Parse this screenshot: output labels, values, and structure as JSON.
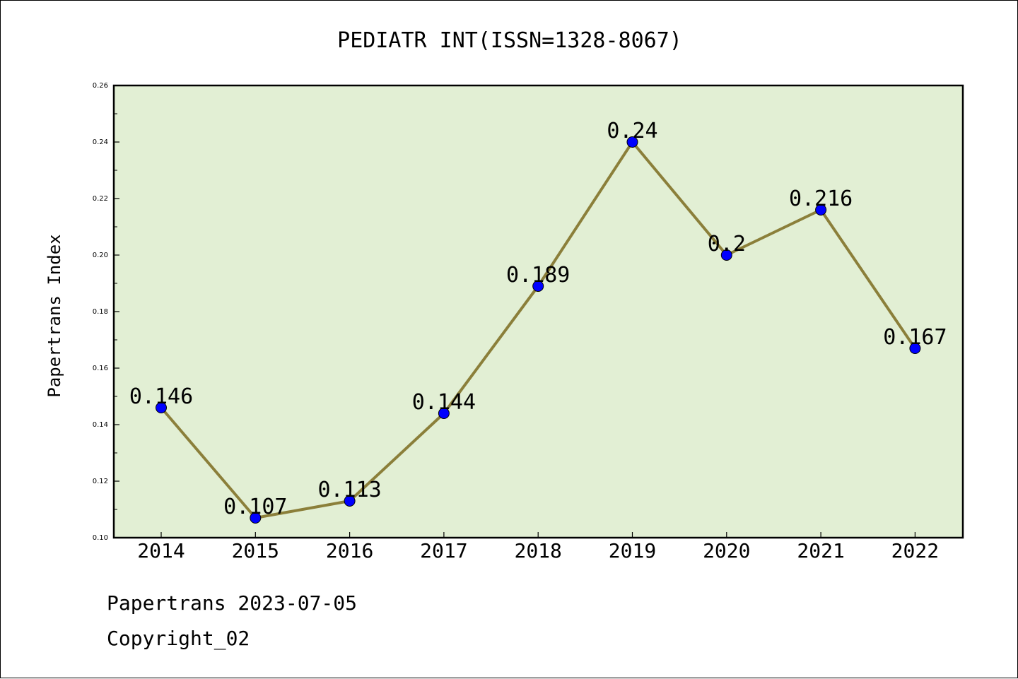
{
  "chart_data": {
    "type": "line",
    "title": "PEDIATR INT(ISSN=1328-8067)",
    "ylabel": "Papertrans Index",
    "xlabel": "",
    "categories": [
      "2014",
      "2015",
      "2016",
      "2017",
      "2018",
      "2019",
      "2020",
      "2021",
      "2022"
    ],
    "values": [
      0.146,
      0.107,
      0.113,
      0.144,
      0.189,
      0.24,
      0.2,
      0.216,
      0.167
    ],
    "data_labels": [
      "0.146",
      "0.107",
      "0.113",
      "0.144",
      "0.189",
      "0.24",
      "0.2",
      "0.216",
      "0.167"
    ],
    "ylim": [
      0.1,
      0.26
    ],
    "yticks": [
      0.1,
      0.12,
      0.14,
      0.16,
      0.18,
      0.2,
      0.22,
      0.24,
      0.26
    ],
    "ytick_labels": [
      "0.10",
      "0.12",
      "0.14",
      "0.16",
      "0.18",
      "0.20",
      "0.22",
      "0.24",
      "0.26"
    ],
    "grid": false,
    "colors": {
      "plot_background": "#e2efd4",
      "line": "#8b7f3a",
      "marker": "#0000ff"
    }
  },
  "footer": {
    "date_line": "Papertrans 2023-07-05",
    "copyright_line": "Copyright_02"
  }
}
